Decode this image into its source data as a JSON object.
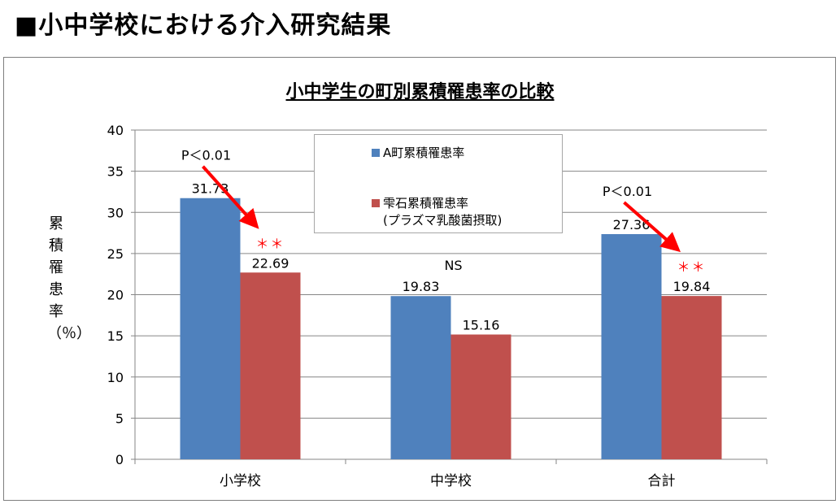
{
  "page": {
    "heading": "■小中学校における介入研究結果"
  },
  "chart_data": {
    "type": "bar",
    "title": "小中学生の町別累積罹患率の比較",
    "ylabel": "累積罹患率（％）",
    "xlabel": "",
    "categories": [
      "小学校",
      "中学校",
      "合計"
    ],
    "ylim": [
      0,
      40
    ],
    "yticks": [
      0,
      5,
      10,
      15,
      20,
      25,
      30,
      35,
      40
    ],
    "grid": true,
    "legend_position": "top-center",
    "series": [
      {
        "name": "A町累積罹患率",
        "values": [
          31.73,
          19.83,
          27.36
        ],
        "labels": [
          "31.73",
          "19.83",
          "27.36"
        ],
        "color": "#4f81bd"
      },
      {
        "name": "雫石累積罹患率",
        "name_sub": "(プラズマ乳酸菌摂取)",
        "values": [
          22.69,
          15.16,
          19.84
        ],
        "labels": [
          "22.69",
          "15.16",
          "19.84"
        ],
        "color": "#c0504d"
      }
    ],
    "annotations": [
      {
        "category": "小学校",
        "significance_text": "P＜0.01",
        "stars": "＊＊"
      },
      {
        "category": "中学校",
        "significance_text": "NS"
      },
      {
        "category": "合計",
        "significance_text": "P＜0.01",
        "stars": "＊＊"
      }
    ],
    "arrow_color": "#ff0000",
    "stars_color": "#ff0000"
  }
}
